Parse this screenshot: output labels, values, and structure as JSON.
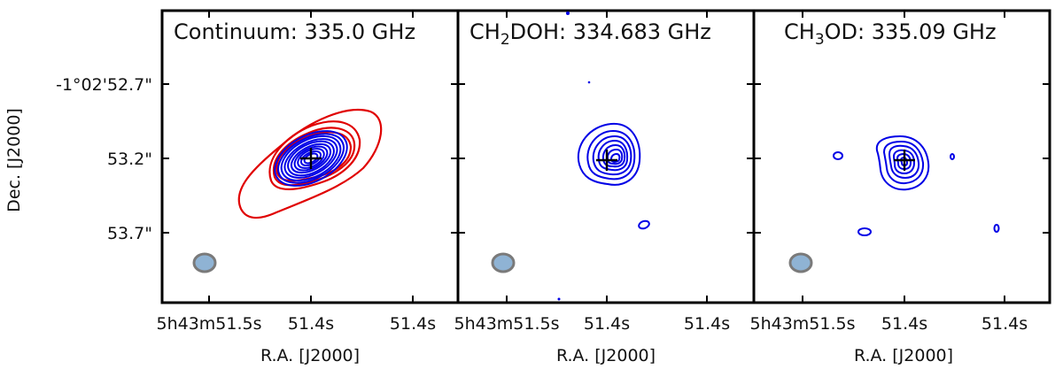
{
  "chart_data": [
    {
      "type": "contour",
      "title": "Continuum: 335.0 GHz",
      "xlabel": "R.A. [J2000]",
      "ylabel": "Dec. [J2000]",
      "x_tick_labels": [
        "5h43m51.5s",
        "51.4s",
        "51.4s"
      ],
      "y_tick_labels": [
        "-1°02'52.7\"",
        "53.2\"",
        "53.7\""
      ],
      "series": [
        {
          "color": "#e00000",
          "levels": 4
        },
        {
          "color": "#0000e6",
          "levels": 10
        }
      ],
      "beam": true,
      "source_marker": "cross"
    },
    {
      "type": "contour",
      "title_main": "CH",
      "title_sub": "2",
      "title_rest": "DOH: 334.683 GHz",
      "xlabel": "R.A. [J2000]",
      "x_tick_labels": [
        "5h43m51.5s",
        "51.4s",
        "51.4s"
      ],
      "series": [
        {
          "color": "#0000e6",
          "levels": 7
        }
      ],
      "beam": true,
      "source_marker": "cross"
    },
    {
      "type": "contour",
      "title_main": "CH",
      "title_sub": "3",
      "title_rest": "OD: 335.09 GHz",
      "xlabel": "R.A. [J2000]",
      "x_tick_labels": [
        "5h43m51.5s",
        "51.4s",
        "51.4s"
      ],
      "series": [
        {
          "color": "#0000e6",
          "levels": 6
        }
      ],
      "beam": true,
      "source_marker": "cross"
    }
  ]
}
